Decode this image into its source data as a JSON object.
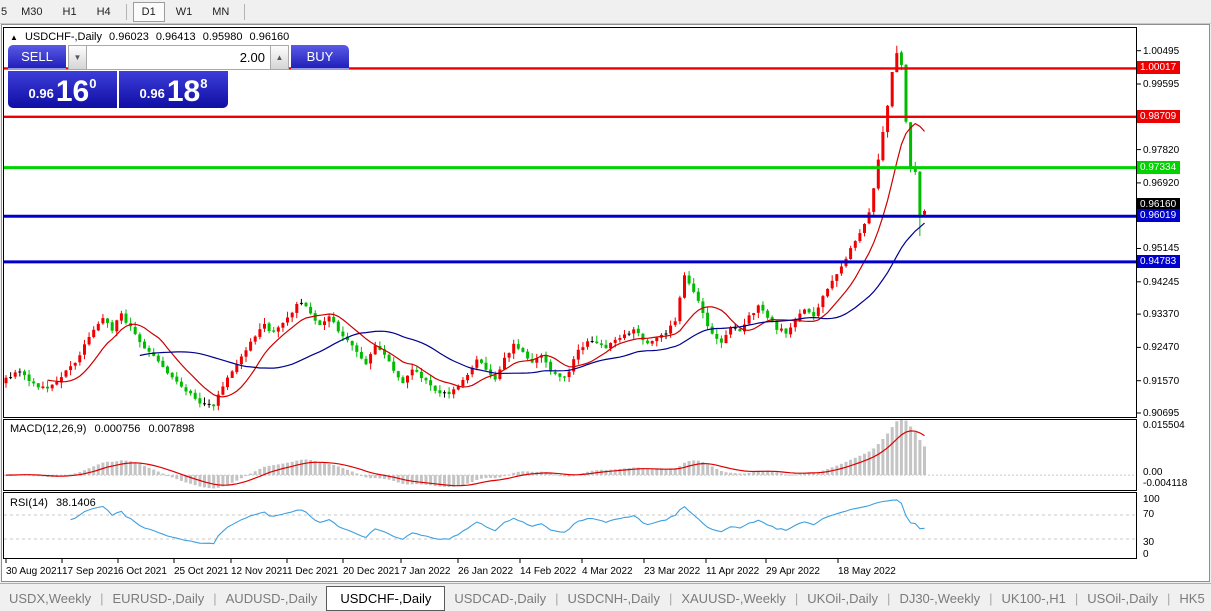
{
  "toolbar": {
    "items": [
      "5",
      "M30",
      "H1",
      "H4",
      "|",
      "D1",
      "W1",
      "MN",
      "|"
    ],
    "active": "D1"
  },
  "header": {
    "collapse_icon": "▲",
    "symbol": "USDCHF-,Daily",
    "open": "0.96023",
    "high": "0.96413",
    "low": "0.95980",
    "close": "0.96160"
  },
  "trade_panel": {
    "sell_label": "SELL",
    "buy_label": "BUY",
    "volume": "2.00",
    "spin_down_icon": "▼",
    "spin_up_icon": "▲",
    "sell_price_small": "0.96",
    "sell_price_big": "16",
    "sell_price_sup": "0",
    "buy_price_small": "0.96",
    "buy_price_big": "18",
    "buy_price_sup": "8"
  },
  "macd_readout": {
    "name": "MACD(12,26,9)",
    "value_main": "0.000756",
    "value_signal": "0.007898"
  },
  "rsi_readout": {
    "name": "RSI(14)",
    "value": "38.1406"
  },
  "tabs": {
    "items": [
      {
        "label": "USDX,Weekly",
        "active": false
      },
      {
        "label": "EURUSD-,Daily",
        "active": false
      },
      {
        "label": "AUDUSD-,Daily",
        "active": false
      },
      {
        "label": "USDCHF-,Daily",
        "active": true
      },
      {
        "label": "USDCAD-,Daily",
        "active": false
      },
      {
        "label": "USDCNH-,Daily",
        "active": false
      },
      {
        "label": "XAUUSD-,Weekly",
        "active": false
      },
      {
        "label": "UKOil-,Daily",
        "active": false
      },
      {
        "label": "DJ30-,Weekly",
        "active": false
      },
      {
        "label": "UK100-,H1",
        "active": false
      },
      {
        "label": "USOil-,Daily",
        "active": false
      },
      {
        "label": "HK5",
        "active": false
      }
    ],
    "separator": "|",
    "scroll_left_icon": "◄",
    "scroll_right_icon": "►"
  },
  "chart_data": {
    "type": "candlestick",
    "symbol": "USDCHF-",
    "timeframe": "Daily",
    "ohlc_readout": {
      "open": 0.96023,
      "high": 0.96413,
      "low": 0.9598,
      "close": 0.9616
    },
    "candle_count": 200,
    "seed": 42,
    "noise": 0.0012,
    "wick": 0.0016,
    "price_axis_ticks": [
      "1.00495",
      "0.99595",
      "0.97820",
      "0.96920",
      "0.95145",
      "0.94245",
      "0.93370",
      "0.92470",
      "0.91570",
      "0.90695"
    ],
    "levels": [
      {
        "price": 1.00017,
        "label": "1.00017",
        "color": "#ee0000",
        "width": 2.4
      },
      {
        "price": 0.98709,
        "label": "0.98709",
        "color": "#ee0000",
        "width": 2.4
      },
      {
        "price": 0.97334,
        "label": "0.97334",
        "color": "#00d300",
        "width": 3
      },
      {
        "price": 0.96019,
        "label": "0.96019",
        "color": "#0000cd",
        "width": 3
      },
      {
        "price": 0.94783,
        "label": "0.94783",
        "color": "#0000cd",
        "width": 3
      }
    ],
    "current_price": {
      "price": 0.9616,
      "label": "0.96160",
      "bg": "#000000"
    },
    "date_axis": {
      "labels": [
        "30 Aug 2021",
        "17 Sep 2021",
        "6 Oct 2021",
        "25 Oct 2021",
        "12 Nov 2021",
        "1 Dec 2021",
        "20 Dec 2021",
        "7 Jan 2022",
        "26 Jan 2022",
        "14 Feb 2022",
        "4 Mar 2022",
        "23 Mar 2022",
        "11 Apr 2022",
        "29 Apr 2022",
        "18 May 2022"
      ],
      "x": [
        6,
        62,
        118,
        174,
        231,
        287,
        343,
        401,
        458,
        520,
        582,
        644,
        706,
        766,
        838
      ]
    },
    "waypoints": [
      [
        0,
        0.9165
      ],
      [
        3,
        0.9185
      ],
      [
        6,
        0.915
      ],
      [
        9,
        0.913
      ],
      [
        12,
        0.9165
      ],
      [
        15,
        0.921
      ],
      [
        18,
        0.927
      ],
      [
        21,
        0.933
      ],
      [
        23,
        0.9295
      ],
      [
        25,
        0.9335
      ],
      [
        27,
        0.93
      ],
      [
        30,
        0.925
      ],
      [
        33,
        0.9205
      ],
      [
        36,
        0.9165
      ],
      [
        39,
        0.9125
      ],
      [
        42,
        0.91
      ],
      [
        45,
        0.9092
      ],
      [
        47,
        0.914
      ],
      [
        50,
        0.9205
      ],
      [
        53,
        0.9265
      ],
      [
        56,
        0.9305
      ],
      [
        58,
        0.9285
      ],
      [
        60,
        0.9315
      ],
      [
        62,
        0.9345
      ],
      [
        64,
        0.9372
      ],
      [
        66,
        0.9335
      ],
      [
        68,
        0.9305
      ],
      [
        70,
        0.9335
      ],
      [
        72,
        0.9295
      ],
      [
        74,
        0.9265
      ],
      [
        76,
        0.9235
      ],
      [
        78,
        0.9205
      ],
      [
        80,
        0.9248
      ],
      [
        82,
        0.9225
      ],
      [
        84,
        0.9185
      ],
      [
        86,
        0.9155
      ],
      [
        88,
        0.9185
      ],
      [
        90,
        0.9165
      ],
      [
        93,
        0.9135
      ],
      [
        96,
        0.9115
      ],
      [
        98,
        0.9145
      ],
      [
        100,
        0.9175
      ],
      [
        102,
        0.921
      ],
      [
        104,
        0.919
      ],
      [
        106,
        0.916
      ],
      [
        108,
        0.922
      ],
      [
        110,
        0.9255
      ],
      [
        112,
        0.9235
      ],
      [
        114,
        0.9205
      ],
      [
        116,
        0.9225
      ],
      [
        118,
        0.9185
      ],
      [
        121,
        0.916
      ],
      [
        124,
        0.9235
      ],
      [
        127,
        0.927
      ],
      [
        130,
        0.9245
      ],
      [
        133,
        0.927
      ],
      [
        136,
        0.9295
      ],
      [
        139,
        0.926
      ],
      [
        142,
        0.9275
      ],
      [
        145,
        0.932
      ],
      [
        147,
        0.944
      ],
      [
        149,
        0.94
      ],
      [
        151,
        0.934
      ],
      [
        153,
        0.928
      ],
      [
        155,
        0.9255
      ],
      [
        157,
        0.93
      ],
      [
        159,
        0.9285
      ],
      [
        161,
        0.933
      ],
      [
        163,
        0.936
      ],
      [
        165,
        0.933
      ],
      [
        167,
        0.93
      ],
      [
        169,
        0.9285
      ],
      [
        171,
        0.932
      ],
      [
        173,
        0.9355
      ],
      [
        175,
        0.933
      ],
      [
        177,
        0.939
      ],
      [
        179,
        0.943
      ],
      [
        181,
        0.9465
      ],
      [
        183,
        0.951
      ],
      [
        185,
        0.9555
      ],
      [
        187,
        0.961
      ],
      [
        189,
        0.975
      ],
      [
        191,
        0.99
      ],
      [
        192,
        0.999
      ],
      [
        193,
        1.004
      ],
      [
        194,
        1.001
      ],
      [
        195,
        0.986
      ],
      [
        196,
        0.974
      ],
      [
        197,
        0.9725
      ],
      [
        198,
        0.961
      ],
      [
        199,
        0.9616
      ]
    ],
    "wick_overrides": [
      {
        "index": 193,
        "high": 1.0063
      },
      {
        "index": 198,
        "low": 0.9548
      }
    ],
    "moving_averages": [
      {
        "period": 10,
        "color": "#cc0000"
      },
      {
        "period": 30,
        "color": "#000090"
      }
    ],
    "macd": {
      "params": [
        12,
        26,
        9
      ],
      "scale_labels": [
        "0.015504",
        "0.00",
        "-0.004118"
      ],
      "hist_color": "#c4c4c4",
      "signal_color": "#dd0000",
      "range": [
        -0.0045,
        0.0156
      ]
    },
    "rsi": {
      "period": 14,
      "scale_labels": [
        "100",
        "70",
        "30",
        "0"
      ],
      "levels": [
        70,
        30
      ],
      "line_color": "#3e9fe0",
      "level_color": "#c8c8c8",
      "range": [
        0,
        100
      ]
    },
    "colors": {
      "bull": "#f00000",
      "bear": "#00bc00",
      "doji": "#000000",
      "pane_border": "#000000",
      "window_border": "#8f8f8f"
    }
  }
}
